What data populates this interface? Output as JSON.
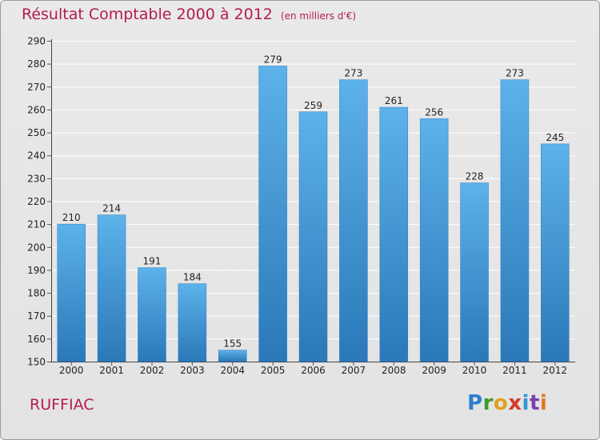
{
  "title": "Résultat Comptable 2000 à 2012",
  "subtitle": "(en milliers d'€)",
  "commune": "RUFFIAC",
  "logo": {
    "letters": [
      "P",
      "r",
      "o",
      "x",
      "i",
      "t",
      "i"
    ],
    "colors": [
      "#2f7fd0",
      "#3e9a2f",
      "#e0a020",
      "#d23a2a",
      "#2f9ad0",
      "#7a3fb0",
      "#e07a20"
    ]
  },
  "chart_data": {
    "type": "bar",
    "title": "Résultat Comptable 2000 à 2012",
    "xlabel": "",
    "ylabel": "en milliers d'€",
    "categories": [
      "2000",
      "2001",
      "2002",
      "2003",
      "2004",
      "2005",
      "2006",
      "2007",
      "2008",
      "2009",
      "2010",
      "2011",
      "2012"
    ],
    "values": [
      210,
      214,
      191,
      184,
      155,
      279,
      259,
      273,
      261,
      256,
      228,
      273,
      245
    ],
    "ylim": [
      150,
      290
    ],
    "yticks": [
      150,
      160,
      170,
      180,
      190,
      200,
      210,
      220,
      230,
      240,
      250,
      260,
      270,
      280,
      290
    ],
    "grid": true,
    "bar_color": "#3d93d6"
  }
}
